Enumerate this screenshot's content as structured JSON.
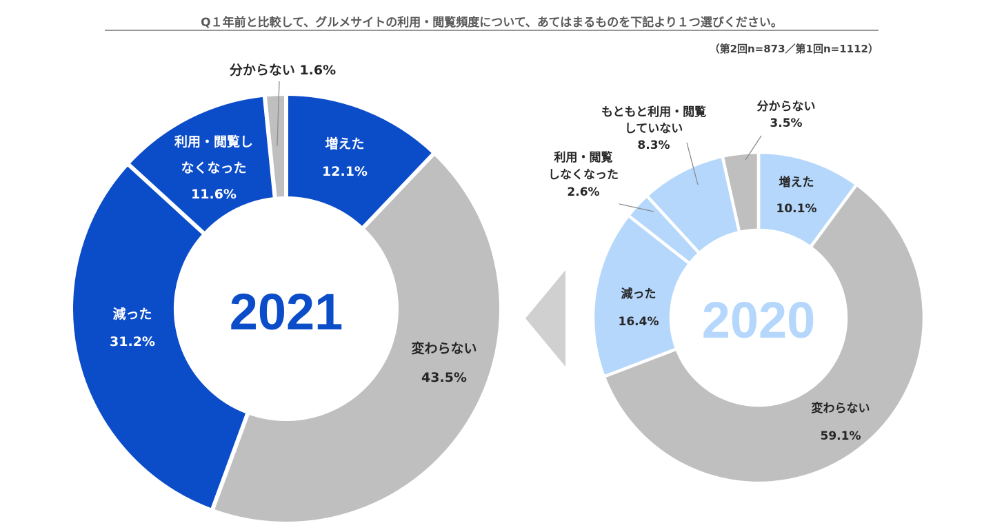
{
  "chart_data": {
    "type": "pie",
    "variant": "donut",
    "title": "Q１年前と比較して、グルメサイトの利用・閲覧頻度について、あてはまるものを下記より１つ選びください。",
    "note": "（第2回n=873／第1回n=1112）",
    "charts": [
      {
        "year": "2021",
        "unit": "%",
        "categories": [
          "増えた",
          "変わらない",
          "減った",
          "利用・閲覧しなくなった",
          "分からない"
        ],
        "values": [
          12.1,
          43.5,
          31.2,
          11.6,
          1.6
        ],
        "colors": [
          "#0b4cc9",
          "#bfbfbf",
          "#0b4cc9",
          "#0b4cc9",
          "#bfbfbf"
        ],
        "labels": [
          {
            "lines": [
              "増えた",
              "12.1%"
            ]
          },
          {
            "lines": [
              "変わらない",
              "43.5%"
            ]
          },
          {
            "lines": [
              "減った",
              "31.2%"
            ]
          },
          {
            "lines": [
              "利用・閲覧し",
              "なくなった",
              "11.6%"
            ]
          },
          {
            "lines": [
              "分からない 1.6%"
            ]
          }
        ]
      },
      {
        "year": "2020",
        "unit": "%",
        "categories": [
          "増えた",
          "変わらない",
          "減った",
          "利用・閲覧しなくなった",
          "もともと利用・閲覧していない",
          "分からない"
        ],
        "values": [
          10.1,
          59.1,
          16.4,
          2.6,
          8.3,
          3.5
        ],
        "colors": [
          "#b4d7fb",
          "#bfbfbf",
          "#b4d7fb",
          "#b4d7fb",
          "#b4d7fb",
          "#bfbfbf"
        ],
        "labels": [
          {
            "lines": [
              "増えた",
              "10.1%"
            ]
          },
          {
            "lines": [
              "変わらない",
              "59.1%"
            ]
          },
          {
            "lines": [
              "減った",
              "16.4%"
            ]
          },
          {
            "lines": [
              "利用・閲覧",
              "しなくなった",
              "2.6%"
            ]
          },
          {
            "lines": [
              "もともと利用・閲覧",
              "していない",
              "8.3%"
            ]
          },
          {
            "lines": [
              "分からない",
              "3.5%"
            ]
          }
        ]
      }
    ]
  },
  "colors": {
    "year_2021": "#0b4cc9",
    "year_2020": "#b4d7fb",
    "arrow": "#d0d0d0",
    "label_dark": "#262626",
    "label_light": "#ffffff"
  }
}
